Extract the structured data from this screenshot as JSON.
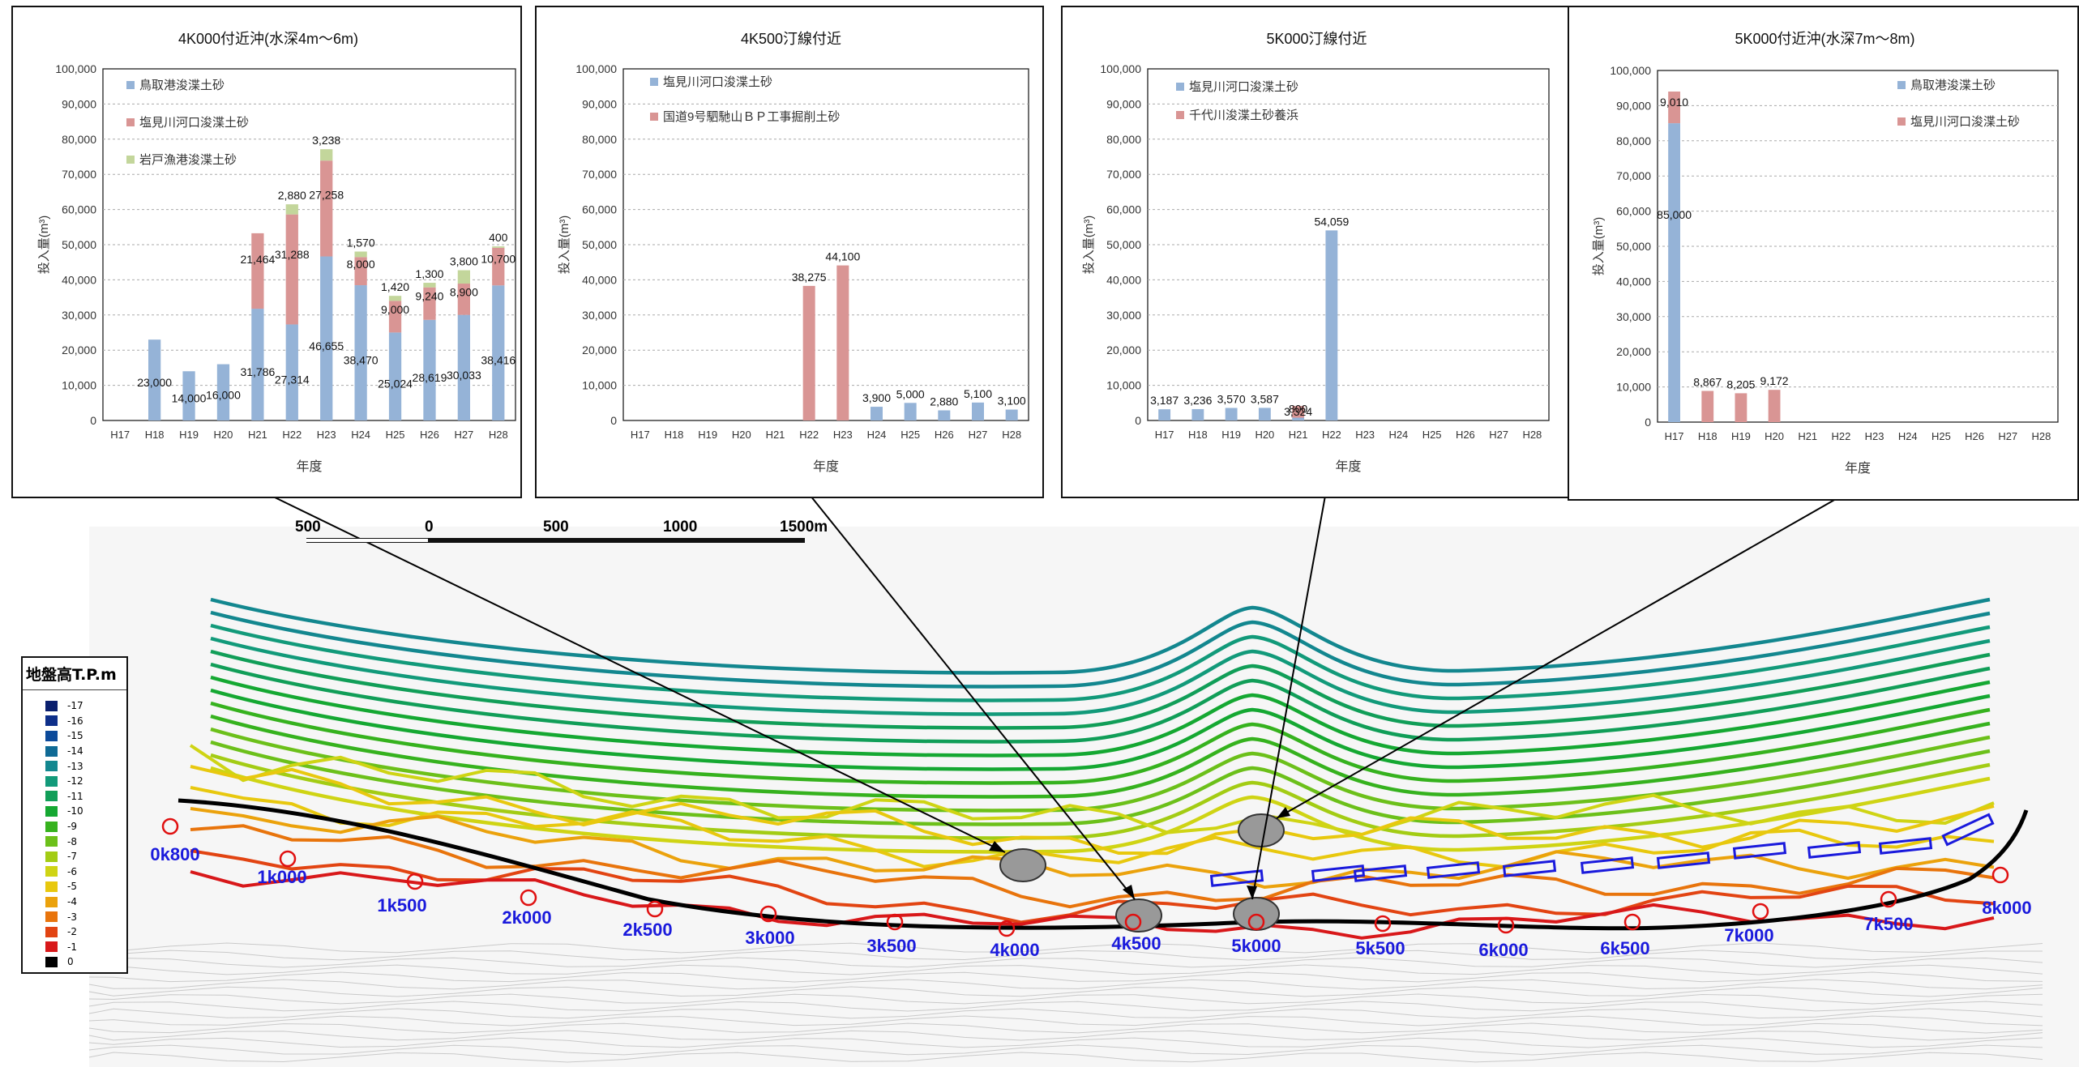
{
  "charts": [
    {
      "title": "4K000付近沖(水深4m〜6m)",
      "ylabel": "投入量(m³)",
      "xlabel": "年度",
      "categories": [
        "H17",
        "H18",
        "H19",
        "H20",
        "H21",
        "H22",
        "H23",
        "H24",
        "H25",
        "H26",
        "H27",
        "H28"
      ],
      "yticks": [
        "0",
        "10,000",
        "20,000",
        "30,000",
        "40,000",
        "50,000",
        "60,000",
        "70,000",
        "80,000",
        "90,000",
        "100,000"
      ],
      "legend": [
        "鳥取港浚渫土砂",
        "塩見川河口浚渫土砂",
        "岩戸漁港浚渫土砂"
      ],
      "colors": [
        "#95b3d7",
        "#d99594",
        "#c3d69b"
      ]
    },
    {
      "title": "4K500汀線付近",
      "ylabel": "投入量(m³)",
      "xlabel": "年度",
      "categories": [
        "H17",
        "H18",
        "H19",
        "H20",
        "H21",
        "H22",
        "H23",
        "H24",
        "H25",
        "H26",
        "H27",
        "H28"
      ],
      "yticks": [
        "0",
        "10,000",
        "20,000",
        "30,000",
        "40,000",
        "50,000",
        "60,000",
        "70,000",
        "80,000",
        "90,000",
        "100,000"
      ],
      "legend": [
        "塩見川河口浚渫土砂",
        "国道9号駟馳山ＢＰ工事掘削土砂"
      ],
      "colors": [
        "#95b3d7",
        "#d99594"
      ]
    },
    {
      "title": "5K000汀線付近",
      "ylabel": "投入量(m³)",
      "xlabel": "年度",
      "categories": [
        "H17",
        "H18",
        "H19",
        "H20",
        "H21",
        "H22",
        "H23",
        "H24",
        "H25",
        "H26",
        "H27",
        "H28"
      ],
      "yticks": [
        "0",
        "10,000",
        "20,000",
        "30,000",
        "40,000",
        "50,000",
        "60,000",
        "70,000",
        "80,000",
        "90,000",
        "100,000"
      ],
      "legend": [
        "塩見川河口浚渫土砂",
        "千代川浚渫土砂養浜"
      ],
      "colors": [
        "#95b3d7",
        "#d99594"
      ]
    },
    {
      "title": "5K000付近沖(水深7m〜8m)",
      "ylabel": "投入量(m³)",
      "xlabel": "年度",
      "categories": [
        "H17",
        "H18",
        "H19",
        "H20",
        "H21",
        "H22",
        "H23",
        "H24",
        "H25",
        "H26",
        "H27",
        "H28"
      ],
      "yticks": [
        "0",
        "10,000",
        "20,000",
        "30,000",
        "40,000",
        "50,000",
        "60,000",
        "70,000",
        "80,000",
        "90,000",
        "100,000"
      ],
      "legend": [
        "鳥取港浚渫土砂",
        "塩見川河口浚渫土砂"
      ],
      "colors": [
        "#95b3d7",
        "#d99594"
      ]
    }
  ],
  "chart_data": [
    {
      "type": "bar",
      "title": "4K000付近沖(水深4m〜6m)",
      "xlabel": "年度",
      "ylabel": "投入量(m³)",
      "ylim": [
        0,
        100000
      ],
      "stacked": true,
      "categories": [
        "H17",
        "H18",
        "H19",
        "H20",
        "H21",
        "H22",
        "H23",
        "H24",
        "H25",
        "H26",
        "H27",
        "H28"
      ],
      "series": [
        {
          "name": "鳥取港浚渫土砂",
          "values": [
            0,
            23000,
            14000,
            16000,
            31786,
            27314,
            46655,
            38470,
            25024,
            28619,
            30033,
            38416
          ],
          "labels": [
            "",
            "23,000",
            "14,000",
            "16,000",
            "31,786",
            "27,314",
            "46,655",
            "38,470",
            "25,024",
            "28,619",
            "30,033",
            "38,416"
          ]
        },
        {
          "name": "塩見川河口浚渫土砂",
          "values": [
            0,
            0,
            0,
            0,
            21464,
            31288,
            27258,
            8000,
            9000,
            9240,
            8900,
            10700
          ],
          "labels": [
            "",
            "",
            "",
            "",
            "21,464",
            "31,288",
            "27,258",
            "8,000",
            "9,000",
            "9,240",
            "8,900",
            "10,700"
          ]
        },
        {
          "name": "岩戸漁港浚渫土砂",
          "values": [
            0,
            0,
            0,
            0,
            0,
            2880,
            3238,
            1570,
            1420,
            1300,
            3800,
            400
          ],
          "labels": [
            "",
            "",
            "",
            "",
            "",
            "2,880",
            "3,238",
            "1,570",
            "1,420",
            "1,300",
            "3,800",
            "400"
          ]
        }
      ]
    },
    {
      "type": "bar",
      "title": "4K500汀線付近",
      "xlabel": "年度",
      "ylabel": "投入量(m³)",
      "ylim": [
        0,
        100000
      ],
      "stacked": true,
      "categories": [
        "H17",
        "H18",
        "H19",
        "H20",
        "H21",
        "H22",
        "H23",
        "H24",
        "H25",
        "H26",
        "H27",
        "H28"
      ],
      "series": [
        {
          "name": "塩見川河口浚渫土砂",
          "values": [
            0,
            0,
            0,
            0,
            0,
            0,
            0,
            3900,
            5000,
            2880,
            5100,
            3100
          ],
          "labels": [
            "",
            "",
            "",
            "",
            "",
            "",
            "",
            "3,900",
            "5,000",
            "2,880",
            "5,100",
            "3,100"
          ]
        },
        {
          "name": "国道9号駟馳山ＢＰ工事掘削土砂",
          "values": [
            0,
            0,
            0,
            0,
            0,
            38275,
            44100,
            0,
            0,
            0,
            0,
            0
          ],
          "labels": [
            "",
            "",
            "",
            "",
            "",
            "38,275",
            "44,100",
            "",
            "",
            "",
            "",
            ""
          ]
        }
      ]
    },
    {
      "type": "bar",
      "title": "5K000汀線付近",
      "xlabel": "年度",
      "ylabel": "投入量(m³)",
      "ylim": [
        0,
        100000
      ],
      "stacked": true,
      "categories": [
        "H17",
        "H18",
        "H19",
        "H20",
        "H21",
        "H22",
        "H23",
        "H24",
        "H25",
        "H26",
        "H27",
        "H28"
      ],
      "series": [
        {
          "name": "塩見川河口浚渫土砂",
          "values": [
            3187,
            3236,
            3570,
            3587,
            800,
            54059,
            0,
            0,
            0,
            0,
            0,
            0
          ],
          "labels": [
            "3,187",
            "3,236",
            "3,570",
            "3,587",
            "800",
            "54,059",
            "",
            "",
            "",
            "",
            "",
            ""
          ]
        },
        {
          "name": "千代川浚渫土砂養浜",
          "values": [
            0,
            0,
            0,
            0,
            3324,
            0,
            0,
            0,
            0,
            0,
            0,
            0
          ],
          "labels": [
            "",
            "",
            "",
            "",
            "3,324",
            "",
            "",
            "",
            "",
            "",
            "",
            ""
          ]
        }
      ]
    },
    {
      "type": "bar",
      "title": "5K000付近沖(水深7m〜8m)",
      "xlabel": "年度",
      "ylabel": "投入量(m³)",
      "ylim": [
        0,
        100000
      ],
      "stacked": true,
      "categories": [
        "H17",
        "H18",
        "H19",
        "H20",
        "H21",
        "H22",
        "H23",
        "H24",
        "H25",
        "H26",
        "H27",
        "H28"
      ],
      "series": [
        {
          "name": "鳥取港浚渫土砂",
          "values": [
            85000,
            0,
            0,
            0,
            0,
            0,
            0,
            0,
            0,
            0,
            0,
            0
          ],
          "labels": [
            "85,000",
            "",
            "",
            "",
            "",
            "",
            "",
            "",
            "",
            "",
            "",
            ""
          ]
        },
        {
          "name": "塩見川河口浚渫土砂",
          "values": [
            9010,
            8867,
            8205,
            9172,
            0,
            0,
            0,
            0,
            0,
            0,
            0,
            0
          ],
          "labels": [
            "9,010",
            "8,867",
            "8,205",
            "9,172",
            "",
            "",
            "",
            "",
            "",
            "",
            "",
            ""
          ]
        }
      ]
    }
  ],
  "map": {
    "scale_labels": [
      "500",
      "0",
      "500",
      "1000",
      "1500m"
    ],
    "stations": [
      "0k800",
      "1k000",
      "1k500",
      "2k000",
      "2k500",
      "3k000",
      "3k500",
      "4k000",
      "4k500",
      "5k000",
      "5k500",
      "6k000",
      "6k500",
      "7k000",
      "7k500",
      "8k000"
    ],
    "legend_title": "地盤高T.P.m",
    "legend": [
      {
        "label": "-17",
        "color": "#0a1f6e"
      },
      {
        "label": "-16",
        "color": "#0e2f8a"
      },
      {
        "label": "-15",
        "color": "#0c4a9a"
      },
      {
        "label": "-14",
        "color": "#0f6a95"
      },
      {
        "label": "-13",
        "color": "#13878f"
      },
      {
        "label": "-12",
        "color": "#129a7a"
      },
      {
        "label": "-11",
        "color": "#119e58"
      },
      {
        "label": "-10",
        "color": "#15a832"
      },
      {
        "label": "-9",
        "color": "#36b21e"
      },
      {
        "label": "-8",
        "color": "#6cc01a"
      },
      {
        "label": "-7",
        "color": "#a3cc14"
      },
      {
        "label": "-6",
        "color": "#cfd414"
      },
      {
        "label": "-5",
        "color": "#e8c80e"
      },
      {
        "label": "-4",
        "color": "#eba20c"
      },
      {
        "label": "-3",
        "color": "#e8740c"
      },
      {
        "label": "-2",
        "color": "#e24412"
      },
      {
        "label": "-1",
        "color": "#d8181a"
      },
      {
        "label": "0",
        "color": "#000000"
      }
    ]
  }
}
